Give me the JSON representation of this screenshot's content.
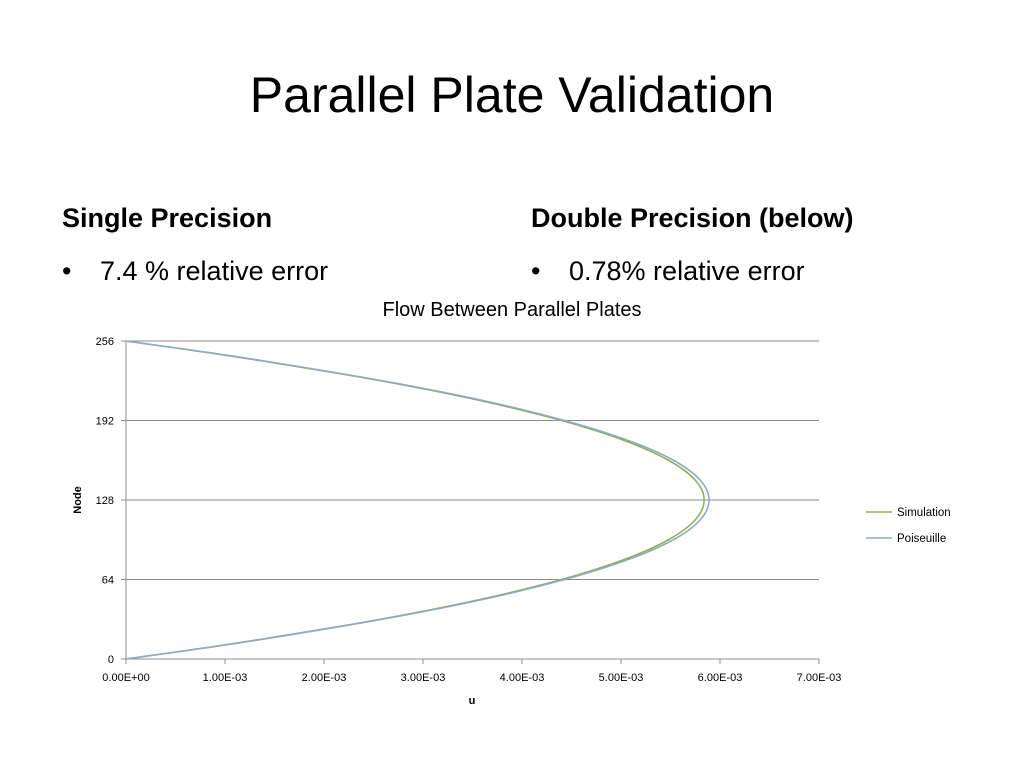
{
  "slide": {
    "title": "Parallel Plate Validation",
    "left": {
      "heading": "Single Precision",
      "bullet_char": "•",
      "bullet": "7.4 % relative error"
    },
    "right": {
      "heading": "Double Precision (below)",
      "bullet_char": "•",
      "bullet": "0.78% relative error"
    }
  },
  "chart_data": {
    "type": "line",
    "title": "Flow Between Parallel Plates",
    "xlabel": "u",
    "ylabel": "Node",
    "xlim": [
      0,
      0.007
    ],
    "ylim": [
      0,
      256
    ],
    "x_ticks": [
      "0.00E+00",
      "1.00E-03",
      "2.00E-03",
      "3.00E-03",
      "4.00E-03",
      "5.00E-03",
      "6.00E-03",
      "7.00E-03"
    ],
    "y_ticks": [
      "0",
      "64",
      "128",
      "192",
      "256"
    ],
    "grid": "horizontal",
    "legend_position": "right",
    "series": [
      {
        "name": "Simulation",
        "color": "#8db05a",
        "points": [
          {
            "node": 0,
            "u": 0
          },
          {
            "node": 8,
            "u": 0.00071
          },
          {
            "node": 16,
            "u": 0.00137
          },
          {
            "node": 32,
            "u": 0.00257
          },
          {
            "node": 48,
            "u": 0.00358
          },
          {
            "node": 64,
            "u": 0.0044
          },
          {
            "node": 80,
            "u": 0.00503
          },
          {
            "node": 96,
            "u": 0.00548
          },
          {
            "node": 112,
            "u": 0.00575
          },
          {
            "node": 128,
            "u": 0.00584
          },
          {
            "node": 144,
            "u": 0.00575
          },
          {
            "node": 160,
            "u": 0.00548
          },
          {
            "node": 176,
            "u": 0.00503
          },
          {
            "node": 192,
            "u": 0.0044
          },
          {
            "node": 208,
            "u": 0.00358
          },
          {
            "node": 224,
            "u": 0.00257
          },
          {
            "node": 240,
            "u": 0.00137
          },
          {
            "node": 248,
            "u": 0.00071
          },
          {
            "node": 256,
            "u": 0
          }
        ]
      },
      {
        "name": "Poiseuille",
        "color": "#8fa9c6",
        "points": [
          {
            "node": 0,
            "u": 0
          },
          {
            "node": 8,
            "u": 0.00072
          },
          {
            "node": 16,
            "u": 0.00139
          },
          {
            "node": 32,
            "u": 0.00259
          },
          {
            "node": 48,
            "u": 0.00361
          },
          {
            "node": 64,
            "u": 0.00443
          },
          {
            "node": 80,
            "u": 0.00507
          },
          {
            "node": 96,
            "u": 0.00553
          },
          {
            "node": 112,
            "u": 0.0058
          },
          {
            "node": 128,
            "u": 0.00589
          },
          {
            "node": 144,
            "u": 0.0058
          },
          {
            "node": 160,
            "u": 0.00553
          },
          {
            "node": 176,
            "u": 0.00507
          },
          {
            "node": 192,
            "u": 0.00443
          },
          {
            "node": 208,
            "u": 0.00361
          },
          {
            "node": 224,
            "u": 0.00259
          },
          {
            "node": 240,
            "u": 0.00139
          },
          {
            "node": 248,
            "u": 0.00072
          },
          {
            "node": 256,
            "u": 0
          }
        ]
      }
    ]
  }
}
